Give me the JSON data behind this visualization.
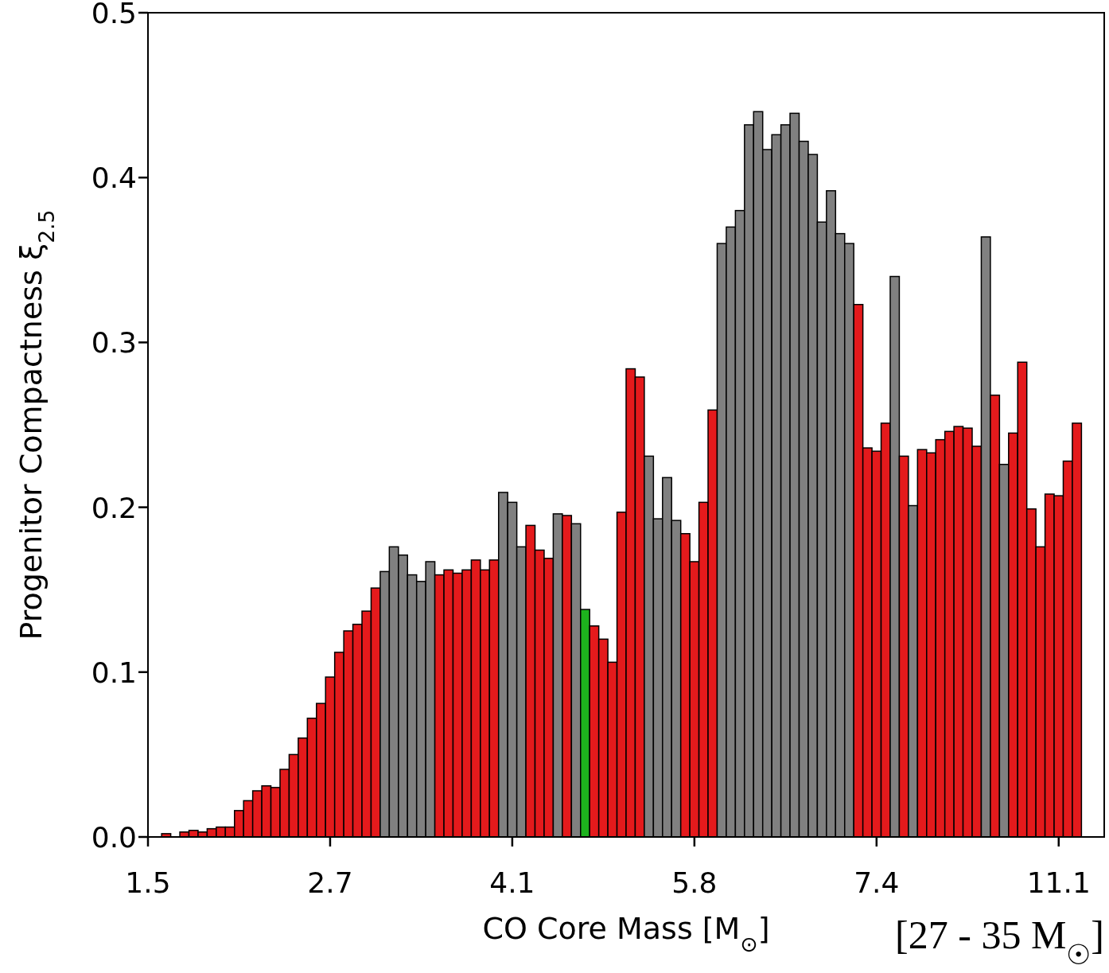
{
  "chart_data": {
    "type": "bar",
    "xlabel": "CO Core Mass [M$_{⊙}$]",
    "ylabel": "Progenitor Compactness ξ$_{2.5}$",
    "annotations": [
      "[27 - 35 M$_{☉}$]"
    ],
    "categories": [
      "1.5",
      null,
      null,
      null,
      null,
      null,
      null,
      null,
      null,
      null,
      null,
      null,
      null,
      null,
      null,
      null,
      null,
      null,
      null,
      null,
      "2.7",
      null,
      null,
      null,
      null,
      null,
      null,
      null,
      null,
      null,
      null,
      null,
      null,
      null,
      null,
      null,
      null,
      null,
      null,
      null,
      "4.1",
      null,
      null,
      null,
      null,
      null,
      null,
      null,
      null,
      null,
      null,
      null,
      null,
      null,
      null,
      null,
      null,
      null,
      null,
      null,
      "5.8",
      null,
      null,
      null,
      null,
      null,
      null,
      null,
      null,
      null,
      null,
      null,
      null,
      null,
      null,
      null,
      null,
      null,
      null,
      null,
      "7.4",
      null,
      null,
      null,
      null,
      null,
      null,
      null,
      null,
      null,
      null,
      null,
      null,
      null,
      null,
      null,
      null,
      null,
      null,
      null,
      "11.1",
      null,
      null,
      null,
      null
    ],
    "values": [
      null,
      null,
      0.002,
      0,
      0.003,
      0.004,
      0.003,
      0.005,
      0.006,
      0.006,
      0.016,
      0.022,
      0.028,
      0.031,
      0.03,
      0.041,
      0.05,
      0.06,
      0.072,
      0.081,
      0.097,
      0.112,
      0.125,
      0.129,
      0.137,
      0.151,
      0.161,
      0.176,
      0.171,
      0.159,
      0.155,
      0.167,
      0.159,
      0.162,
      0.16,
      0.162,
      0.168,
      0.162,
      0.168,
      0.209,
      0.203,
      0.176,
      0.189,
      0.174,
      0.169,
      0.196,
      0.195,
      0.19,
      0.138,
      0.128,
      0.12,
      0.106,
      0.197,
      0.284,
      0.279,
      0.231,
      0.193,
      0.218,
      0.192,
      0.184,
      0.167,
      0.203,
      0.259,
      0.36,
      0.37,
      0.38,
      0.432,
      0.44,
      0.417,
      0.426,
      0.432,
      0.439,
      0.422,
      0.414,
      0.373,
      0.392,
      0.366,
      0.36,
      0.323,
      0.236,
      0.234,
      0.251,
      0.34,
      0.231,
      0.201,
      0.235,
      0.233,
      0.241,
      0.246,
      0.249,
      0.248,
      0.237,
      0.364,
      0.268,
      0.226,
      0.245,
      0.288,
      0.199,
      0.176,
      0.208,
      0.207,
      0.228,
      0.251,
      null,
      null
    ],
    "colors": [
      null,
      null,
      "#e41a1c",
      "#e41a1c",
      "#e41a1c",
      "#e41a1c",
      "#e41a1c",
      "#e41a1c",
      "#e41a1c",
      "#e41a1c",
      "#e41a1c",
      "#e41a1c",
      "#e41a1c",
      "#e41a1c",
      "#e41a1c",
      "#e41a1c",
      "#e41a1c",
      "#e41a1c",
      "#e41a1c",
      "#e41a1c",
      "#e41a1c",
      "#e41a1c",
      "#e41a1c",
      "#e41a1c",
      "#e41a1c",
      "#e41a1c",
      "#808080",
      "#808080",
      "#808080",
      "#808080",
      "#808080",
      "#808080",
      "#e41a1c",
      "#e41a1c",
      "#e41a1c",
      "#e41a1c",
      "#e41a1c",
      "#e41a1c",
      "#e41a1c",
      "#808080",
      "#808080",
      "#808080",
      "#e41a1c",
      "#e41a1c",
      "#e41a1c",
      "#808080",
      "#e41a1c",
      "#808080",
      "#1db31d",
      "#e41a1c",
      "#e41a1c",
      "#e41a1c",
      "#e41a1c",
      "#e41a1c",
      "#e41a1c",
      "#808080",
      "#808080",
      "#808080",
      "#808080",
      "#e41a1c",
      "#e41a1c",
      "#e41a1c",
      "#e41a1c",
      "#808080",
      "#808080",
      "#808080",
      "#808080",
      "#808080",
      "#808080",
      "#808080",
      "#808080",
      "#808080",
      "#808080",
      "#808080",
      "#808080",
      "#808080",
      "#808080",
      "#808080",
      "#e41a1c",
      "#e41a1c",
      "#e41a1c",
      "#e41a1c",
      "#808080",
      "#e41a1c",
      "#808080",
      "#e41a1c",
      "#e41a1c",
      "#e41a1c",
      "#e41a1c",
      "#e41a1c",
      "#e41a1c",
      "#e41a1c",
      "#808080",
      "#e41a1c",
      "#808080",
      "#e41a1c",
      "#e41a1c",
      "#e41a1c",
      "#e41a1c",
      "#e41a1c",
      "#e41a1c",
      "#e41a1c",
      "#e41a1c",
      null,
      null
    ],
    "ylim": [
      0,
      0.5
    ],
    "yticks": [
      {
        "value": 0,
        "label": "0.0"
      },
      {
        "value": 0.1,
        "label": "0.1"
      },
      {
        "value": 0.2,
        "label": "0.2"
      },
      {
        "value": 0.3,
        "label": "0.3"
      },
      {
        "value": 0.4,
        "label": "0.4"
      },
      {
        "value": 0.5,
        "label": "0.5"
      }
    ]
  }
}
